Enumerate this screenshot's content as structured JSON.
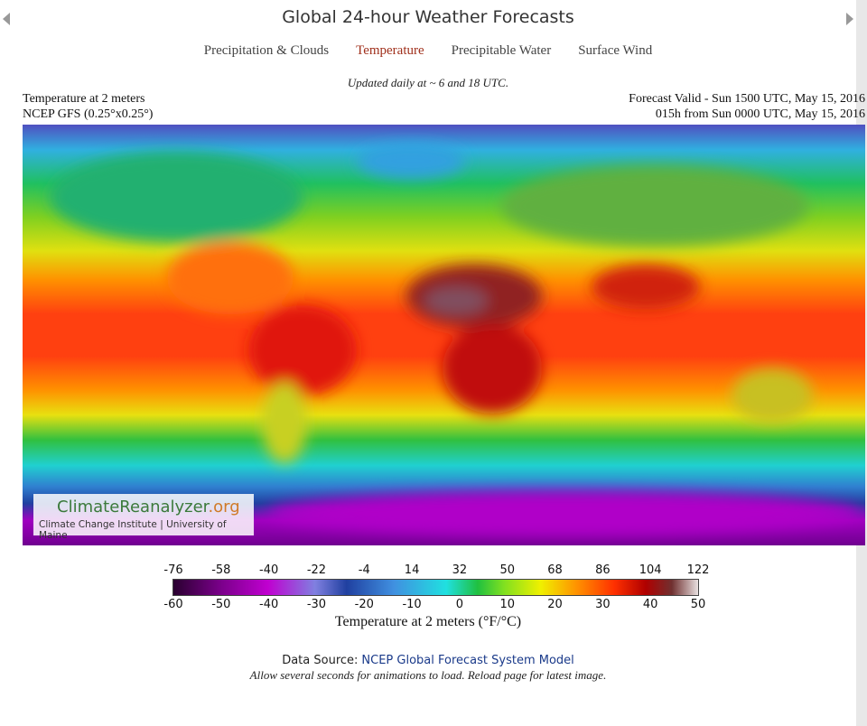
{
  "header": {
    "title": "Global 24-hour Weather Forecasts"
  },
  "nav": [
    "Precipitation & Clouds",
    "Temperature",
    "Precipitable Water",
    "Surface Wind"
  ],
  "update_note": "Updated daily at ~ 6 and 18 UTC.",
  "map_info": {
    "left": [
      "Temperature at 2 meters",
      "NCEP GFS (0.25°x0.25°)"
    ],
    "right": [
      "Forecast Valid - Sun 1500 UTC, May 15, 2016",
      "015h from Sun 0000 UTC, May 15, 2016"
    ]
  },
  "watermark": {
    "brand": "ClimateReanalyzer",
    "tld": ".org",
    "credit": "Climate Change Institute | University of Maine"
  },
  "colorbar": {
    "fahrenheit": [
      -76,
      -58,
      -40,
      -22,
      -4,
      14,
      32,
      50,
      68,
      86,
      104,
      122
    ],
    "celsius": [
      -60,
      -50,
      -40,
      -30,
      -20,
      -10,
      0,
      10,
      20,
      30,
      40,
      50
    ],
    "label": "Temperature at 2 meters (°F/°C)"
  },
  "footer": {
    "source_prefix": "Data Source:",
    "source_link": "NCEP Global Forecast System Model",
    "note": "Allow several seconds for animations to load. Reload page for latest image."
  }
}
